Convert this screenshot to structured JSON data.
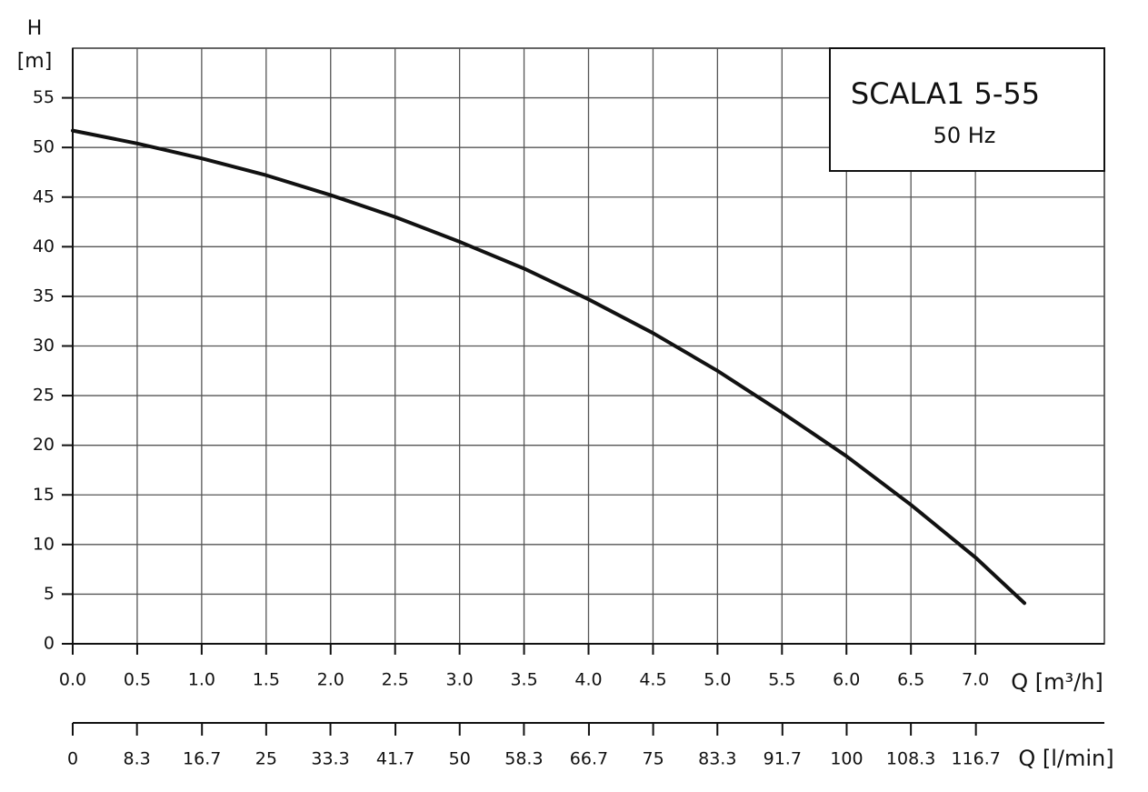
{
  "chart_data": {
    "type": "line",
    "title": "SCALA1 5-55",
    "subtitle": "50 Hz",
    "y_label_name": "H",
    "y_label_unit": "[m]",
    "x_label": "Q [m³/h]",
    "x2_label": "Q [l/min]",
    "x": [
      0,
      0.5,
      1.0,
      1.5,
      2.0,
      2.5,
      3.0,
      3.5,
      4.0,
      4.5,
      5.0,
      5.5,
      6.0,
      6.5,
      7.0,
      7.38
    ],
    "values": [
      51.7,
      50.4,
      48.9,
      47.2,
      45.2,
      43.0,
      40.5,
      37.8,
      34.7,
      31.3,
      27.5,
      23.3,
      18.9,
      14.0,
      8.7,
      4.1
    ],
    "color": "#111111",
    "xlim": [
      0,
      8
    ],
    "ylim": [
      0,
      60
    ],
    "xticks": [
      {
        "value": 0,
        "label": "0.0"
      },
      0.5,
      {
        "value": 1,
        "label": "1.0"
      },
      1.5,
      {
        "value": 2,
        "label": "2.0"
      },
      2.5,
      {
        "value": 3,
        "label": "3.0"
      },
      3.5,
      {
        "value": 4,
        "label": "4.0"
      },
      4.5,
      {
        "value": 5,
        "label": "5.0"
      },
      5.5,
      {
        "value": 6,
        "label": "6.0"
      },
      6.5,
      {
        "value": 7,
        "label": "7.0"
      }
    ],
    "yticks": [
      0,
      5,
      10,
      15,
      20,
      25,
      30,
      35,
      40,
      45,
      50,
      55
    ],
    "x2lim": [
      0,
      133.3
    ],
    "x2ticks": [
      0,
      8.3,
      16.7,
      25,
      33.3,
      41.7,
      50,
      58.3,
      66.7,
      75,
      83.3,
      91.7,
      100,
      108.3,
      116.7
    ],
    "grid": true
  }
}
